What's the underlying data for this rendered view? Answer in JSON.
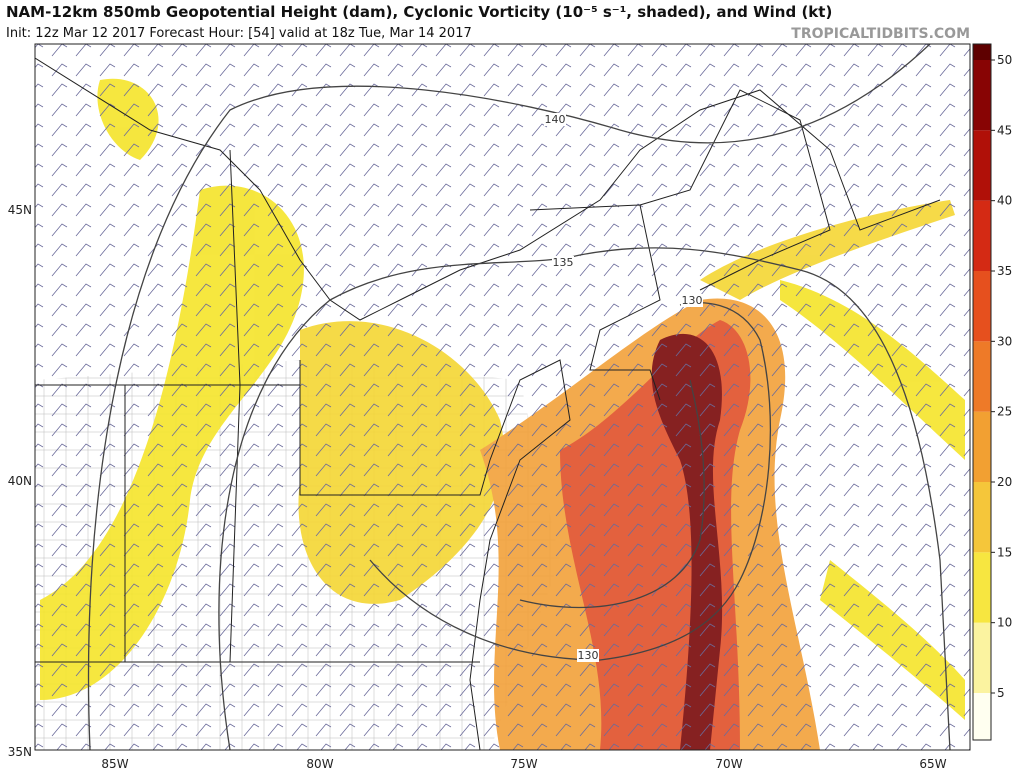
{
  "header": {
    "title": "NAM-12km 850mb Geopotential Height (dam), Cyclonic Vorticity (10⁻⁵ s⁻¹, shaded), and Wind (kt)",
    "subtitle": "Init: 12z Mar 12 2017   Forecast Hour: [54]   valid at 18z Tue, Mar 14 2017",
    "credit": "TROPICALTIDBITS.COM"
  },
  "map": {
    "lat_labels": [
      "45N",
      "40N",
      "35N"
    ],
    "lon_labels": [
      "85W",
      "80W",
      "75W",
      "70W",
      "65W"
    ],
    "contour_labels": [
      "140",
      "135",
      "130",
      "130"
    ]
  },
  "colorbar": {
    "ticks": [
      5,
      10,
      15,
      20,
      25,
      30,
      35,
      40,
      45,
      50
    ]
  }
}
